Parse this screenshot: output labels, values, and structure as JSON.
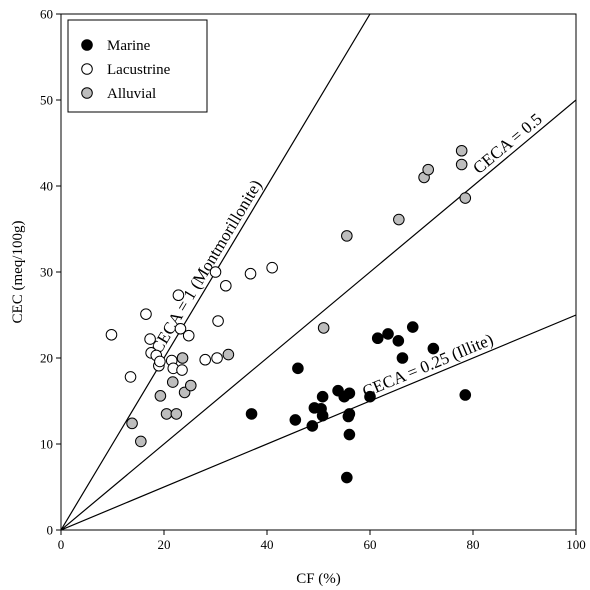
{
  "chart_data": {
    "type": "scatter",
    "xlabel": "CF (%)",
    "ylabel": "CEC (meq/100g)",
    "xlim": [
      0,
      100
    ],
    "ylim": [
      0,
      60
    ],
    "xticks": [
      0,
      20,
      40,
      60,
      80,
      100
    ],
    "yticks": [
      0,
      10,
      20,
      30,
      40,
      50,
      60
    ],
    "grid": false,
    "legend_position": "top-left",
    "series": [
      {
        "name": "Marine",
        "marker": "filled-circle",
        "color": "#000000",
        "points": [
          [
            37,
            13.5
          ],
          [
            46,
            18.8
          ],
          [
            45.5,
            12.8
          ],
          [
            48.8,
            12.1
          ],
          [
            49.2,
            14.2
          ],
          [
            50.8,
            15.5
          ],
          [
            50.5,
            14.1
          ],
          [
            50.8,
            13.3
          ],
          [
            53.8,
            16.2
          ],
          [
            55,
            15.5
          ],
          [
            55.5,
            6.1
          ],
          [
            56,
            13.5
          ],
          [
            56,
            11.1
          ],
          [
            56,
            15.9
          ],
          [
            55.8,
            13.2
          ],
          [
            60,
            15.5
          ],
          [
            61.5,
            22.3
          ],
          [
            63.5,
            22.8
          ],
          [
            65.5,
            22.0
          ],
          [
            66.3,
            20
          ],
          [
            68.3,
            23.6
          ],
          [
            72.3,
            21.1
          ],
          [
            78.5,
            15.7
          ]
        ]
      },
      {
        "name": "Lacustrine",
        "marker": "open-circle",
        "color": "#ffffff",
        "points": [
          [
            9.8,
            22.7
          ],
          [
            13.5,
            17.8
          ],
          [
            16.5,
            25.1
          ],
          [
            17.3,
            22.2
          ],
          [
            17.5,
            20.6
          ],
          [
            18.5,
            20.3
          ],
          [
            19,
            19.1
          ],
          [
            19.2,
            19.6
          ],
          [
            21.5,
            19.7
          ],
          [
            21.8,
            18.8
          ],
          [
            22.8,
            27.3
          ],
          [
            23.2,
            23.4
          ],
          [
            23.5,
            18.6
          ],
          [
            24.8,
            22.6
          ],
          [
            28,
            19.8
          ],
          [
            30,
            30
          ],
          [
            30.3,
            20.0
          ],
          [
            30.5,
            24.3
          ],
          [
            32,
            28.4
          ],
          [
            36.8,
            29.8
          ],
          [
            41,
            30.5
          ]
        ]
      },
      {
        "name": "Alluvial",
        "marker": "gray-circle",
        "color": "#bdbdbd",
        "points": [
          [
            13.8,
            12.4
          ],
          [
            15.5,
            10.3
          ],
          [
            19.3,
            15.6
          ],
          [
            20.5,
            13.5
          ],
          [
            21.7,
            17.2
          ],
          [
            22.4,
            13.5
          ],
          [
            23.6,
            20.0
          ],
          [
            24,
            16
          ],
          [
            25.2,
            16.8
          ],
          [
            32.5,
            20.4
          ],
          [
            51,
            23.5
          ],
          [
            55.5,
            34.2
          ],
          [
            65.6,
            36.1
          ],
          [
            70.5,
            41
          ],
          [
            71.3,
            41.9
          ],
          [
            77.8,
            44.1
          ],
          [
            77.8,
            42.5
          ],
          [
            78.5,
            38.6
          ]
        ]
      }
    ],
    "reference_lines": [
      {
        "slope": 1,
        "label": "CECA = 1 (Montmorillonite)"
      },
      {
        "slope": 0.5,
        "label": "CECA = 0.5"
      },
      {
        "slope": 0.25,
        "label": "CECA = 0.25 (Illite)"
      }
    ]
  }
}
